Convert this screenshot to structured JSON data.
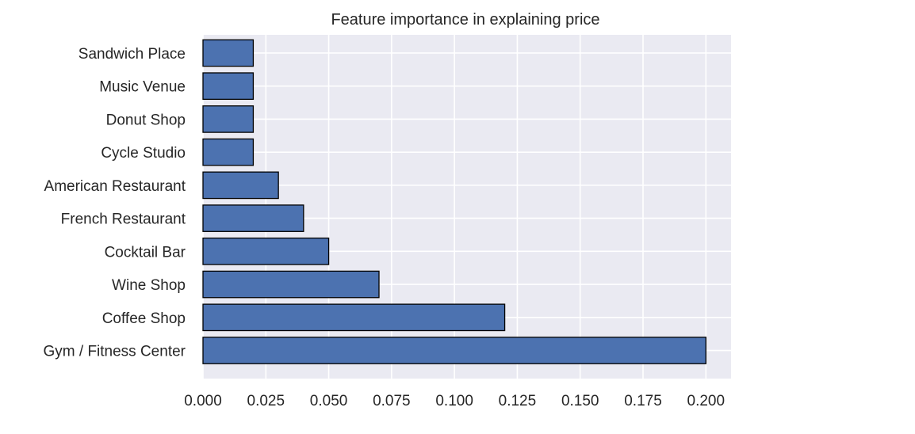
{
  "chart_data": {
    "type": "bar",
    "orientation": "horizontal",
    "title": "Feature importance in explaining price",
    "xlabel": "",
    "ylabel": "",
    "categories": [
      "Gym / Fitness Center",
      "Coffee Shop",
      "Wine Shop",
      "Cocktail Bar",
      "French Restaurant",
      "American Restaurant",
      "Cycle Studio",
      "Donut Shop",
      "Music Venue",
      "Sandwich Place"
    ],
    "values": [
      0.2,
      0.12,
      0.07,
      0.05,
      0.04,
      0.03,
      0.02,
      0.02,
      0.02,
      0.02
    ],
    "xlim": [
      0.0,
      0.21
    ],
    "xticks": [
      "0.000",
      "0.025",
      "0.050",
      "0.075",
      "0.100",
      "0.125",
      "0.150",
      "0.175",
      "0.200"
    ],
    "grid": true,
    "legend": "none",
    "colors": {
      "bar": "#4c72b0",
      "bar_edge": "#000000",
      "plot_background": "#eaeaf2",
      "grid": "#ffffff",
      "text": "#262626"
    }
  }
}
